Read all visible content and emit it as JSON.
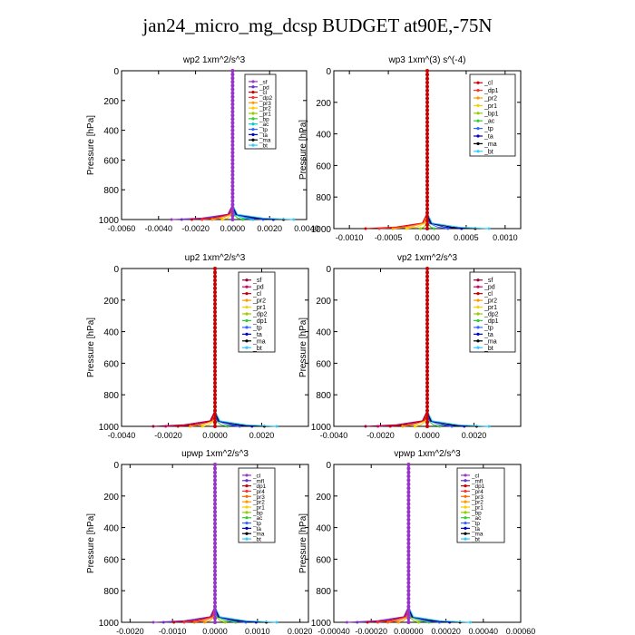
{
  "page": {
    "title": "jan24_micro_mg_dcsp  BUDGET at90E,-75N"
  },
  "chart_data": [
    {
      "type": "line",
      "title": "wp2   1xm^2/s^3",
      "ylabel": "Pressure  [hPa]",
      "xlim": [
        -0.006,
        0.004
      ],
      "ylim": [
        1000,
        0
      ],
      "x_ticks": [
        -0.006,
        -0.004,
        -0.002,
        0.0,
        0.002,
        0.004
      ],
      "x_tick_labels": [
        "-0.0060",
        "-0.0040",
        "-0.0020",
        "0.0000",
        "0.0020",
        "0.0040"
      ],
      "y_ticks": [
        0,
        200,
        400,
        600,
        800,
        1000
      ],
      "y_tick_labels": [
        "0",
        "200",
        "400",
        "600",
        "800",
        "1000"
      ],
      "legend_position": "upper-right",
      "dominant_color": "#9933cc",
      "series": [
        {
          "name": "_sf",
          "color": "#9933cc"
        },
        {
          "name": "_pd",
          "color": "#6633cc"
        },
        {
          "name": "_cl",
          "color": "#cc0000"
        },
        {
          "name": "_dp2",
          "color": "#ff3333"
        },
        {
          "name": "_pr3",
          "color": "#ff9900"
        },
        {
          "name": "_pr2",
          "color": "#ffcc00"
        },
        {
          "name": "_pr1",
          "color": "#99cc00"
        },
        {
          "name": "_bp",
          "color": "#33cc33"
        },
        {
          "name": "_ac",
          "color": "#00cccc"
        },
        {
          "name": "_tp",
          "color": "#3366ff"
        },
        {
          "name": "_ta",
          "color": "#0000cc"
        },
        {
          "name": "_ma",
          "color": "#000000"
        },
        {
          "name": "_bt",
          "color": "#33ccff"
        }
      ]
    },
    {
      "type": "line",
      "title": "wp3   1xm^(3) s^(-4)",
      "ylabel": "Pressure  [hPa]",
      "xlim": [
        -0.0012,
        0.0012
      ],
      "ylim": [
        1000,
        0
      ],
      "x_ticks": [
        -0.001,
        -0.0005,
        0.0,
        0.0005,
        0.001
      ],
      "x_tick_labels": [
        "-0.0010",
        "-0.0005",
        "0.0000",
        "0.0005",
        "0.0010"
      ],
      "y_ticks": [
        0,
        200,
        400,
        600,
        800,
        1000
      ],
      "y_tick_labels": [
        "0",
        "200",
        "400",
        "600",
        "800",
        "1000"
      ],
      "legend_position": "upper-right",
      "dominant_color": "#cc0000",
      "series": [
        {
          "name": "_cl",
          "color": "#cc0000"
        },
        {
          "name": "_dp1",
          "color": "#ff3333"
        },
        {
          "name": "_pr2",
          "color": "#ff9900"
        },
        {
          "name": "_pr1",
          "color": "#ffcc00"
        },
        {
          "name": "_bp1",
          "color": "#99cc00"
        },
        {
          "name": "_ac",
          "color": "#33cc33"
        },
        {
          "name": "_tp",
          "color": "#3366ff"
        },
        {
          "name": "_ta",
          "color": "#0000cc"
        },
        {
          "name": "_ma",
          "color": "#000000"
        },
        {
          "name": "_bt",
          "color": "#33ccff"
        }
      ]
    },
    {
      "type": "line",
      "title": "up2   1xm^2/s^3",
      "ylabel": "Pressure  [hPa]",
      "xlim": [
        -0.004,
        0.004
      ],
      "ylim": [
        1000,
        0
      ],
      "x_ticks": [
        -0.004,
        -0.002,
        0.0,
        0.002
      ],
      "x_tick_labels": [
        "-0.0040",
        "-0.0020",
        "0.0000",
        "0.0020"
      ],
      "y_ticks": [
        0,
        200,
        400,
        600,
        800,
        1000
      ],
      "y_tick_labels": [
        "0",
        "200",
        "400",
        "600",
        "800",
        "1000"
      ],
      "legend_position": "upper-right",
      "dominant_color": "#cc0000",
      "series": [
        {
          "name": "_sf",
          "color": "#990033"
        },
        {
          "name": "_pd",
          "color": "#cc0066"
        },
        {
          "name": "_cl",
          "color": "#cc0000"
        },
        {
          "name": "_pr2",
          "color": "#ff9900"
        },
        {
          "name": "_pr1",
          "color": "#ffcc00"
        },
        {
          "name": "_dp2",
          "color": "#99cc00"
        },
        {
          "name": "_dp1",
          "color": "#33cc33"
        },
        {
          "name": "_tp",
          "color": "#3366ff"
        },
        {
          "name": "_ta",
          "color": "#0000cc"
        },
        {
          "name": "_ma",
          "color": "#000000"
        },
        {
          "name": "_bt",
          "color": "#33ccff"
        }
      ]
    },
    {
      "type": "line",
      "title": "vp2   1xm^2/s^3",
      "ylabel": "Pressure  [hPa]",
      "xlim": [
        -0.004,
        0.004
      ],
      "ylim": [
        1000,
        0
      ],
      "x_ticks": [
        -0.004,
        -0.002,
        0.0,
        0.002
      ],
      "x_tick_labels": [
        "-0.0040",
        "-0.0020",
        "0.0000",
        "0.0020"
      ],
      "y_ticks": [
        0,
        200,
        400,
        600,
        800,
        1000
      ],
      "y_tick_labels": [
        "0",
        "200",
        "400",
        "600",
        "800",
        "1000"
      ],
      "legend_position": "upper-right",
      "dominant_color": "#cc0000",
      "series": [
        {
          "name": "_sf",
          "color": "#990033"
        },
        {
          "name": "_pd",
          "color": "#cc0066"
        },
        {
          "name": "_cl",
          "color": "#cc0000"
        },
        {
          "name": "_pr2",
          "color": "#ff9900"
        },
        {
          "name": "_pr1",
          "color": "#ffcc00"
        },
        {
          "name": "_dp2",
          "color": "#99cc00"
        },
        {
          "name": "_dp1",
          "color": "#33cc33"
        },
        {
          "name": "_tp",
          "color": "#3366ff"
        },
        {
          "name": "_ta",
          "color": "#0000cc"
        },
        {
          "name": "_ma",
          "color": "#000000"
        },
        {
          "name": "_bt",
          "color": "#33ccff"
        }
      ]
    },
    {
      "type": "line",
      "title": "upwp   1xm^2/s^3",
      "ylabel": "Pressure  [hPa]",
      "xlim": [
        -0.0022,
        0.0022
      ],
      "ylim": [
        1000,
        0
      ],
      "x_ticks": [
        -0.002,
        -0.001,
        0.0,
        0.001,
        0.002
      ],
      "x_tick_labels": [
        "-0.0020",
        "-0.0010",
        "0.0000",
        "0.0010",
        "0.0020"
      ],
      "y_ticks": [
        0,
        200,
        400,
        600,
        800,
        1000
      ],
      "y_tick_labels": [
        "0",
        "200",
        "400",
        "600",
        "800",
        "1000"
      ],
      "legend_position": "upper-right",
      "dominant_color": "#9933cc",
      "series": [
        {
          "name": "_cl",
          "color": "#9933cc"
        },
        {
          "name": "_mfl",
          "color": "#6633cc"
        },
        {
          "name": "_dp1",
          "color": "#cc0000"
        },
        {
          "name": "_pr4",
          "color": "#ff3333"
        },
        {
          "name": "_pr3",
          "color": "#ff6600"
        },
        {
          "name": "_pr2",
          "color": "#ff9900"
        },
        {
          "name": "_pr1",
          "color": "#ffcc00"
        },
        {
          "name": "_bp",
          "color": "#99cc00"
        },
        {
          "name": "_ac",
          "color": "#33cc33"
        },
        {
          "name": "_tp",
          "color": "#3366ff"
        },
        {
          "name": "_ta",
          "color": "#0000cc"
        },
        {
          "name": "_ma",
          "color": "#000000"
        },
        {
          "name": "_bt",
          "color": "#33ccff"
        }
      ]
    },
    {
      "type": "line",
      "title": "vpwp   1xm^2/s^3",
      "ylabel": "Pressure  [hPa]",
      "xlim": [
        -0.0004,
        0.0006
      ],
      "ylim": [
        1000,
        0
      ],
      "x_ticks": [
        -0.0004,
        -0.0002,
        0.0,
        0.0002,
        0.0004,
        0.0006
      ],
      "x_tick_labels": [
        "-0.00040",
        "-0.00020",
        "0.00000",
        "0.00020",
        "0.00040",
        "0.00060"
      ],
      "y_ticks": [
        0,
        200,
        400,
        600,
        800,
        1000
      ],
      "y_tick_labels": [
        "0",
        "200",
        "400",
        "600",
        "800",
        "1000"
      ],
      "legend_position": "upper-right",
      "dominant_color": "#9933cc",
      "series": [
        {
          "name": "_cl",
          "color": "#9933cc"
        },
        {
          "name": "_mfl",
          "color": "#6633cc"
        },
        {
          "name": "_dp1",
          "color": "#cc0000"
        },
        {
          "name": "_pr4",
          "color": "#ff3333"
        },
        {
          "name": "_pr3",
          "color": "#ff6600"
        },
        {
          "name": "_pr2",
          "color": "#ff9900"
        },
        {
          "name": "_pr1",
          "color": "#ffcc00"
        },
        {
          "name": "_bp",
          "color": "#99cc00"
        },
        {
          "name": "_ac",
          "color": "#33cc33"
        },
        {
          "name": "_tp",
          "color": "#3366ff"
        },
        {
          "name": "_ta",
          "color": "#0000cc"
        },
        {
          "name": "_ma",
          "color": "#000000"
        },
        {
          "name": "_bt",
          "color": "#33ccff"
        }
      ]
    }
  ]
}
